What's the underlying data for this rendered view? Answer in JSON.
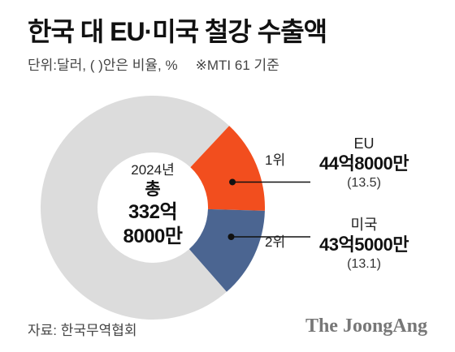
{
  "title": "한국 대 EU·미국 철강 수출액",
  "subtitle": "단위:달러, ( )안은 비율, %",
  "note": "※MTI 61 기준",
  "center": {
    "year": "2024년",
    "total_label": "총",
    "total_line1": "332억",
    "total_line2": "8000만"
  },
  "colors": {
    "eu": "#F24E1E",
    "us": "#4B6591",
    "rest": "#DCDCDC"
  },
  "chart_data": {
    "type": "pie",
    "title": "한국 대 EU·미국 철강 수출액",
    "unit": "달러",
    "total": 33280000000,
    "slices": [
      {
        "name": "EU",
        "rank": "1위",
        "value_label": "44억8000만",
        "value": 4480000000,
        "share": 13.5,
        "share_label": "(13.5)"
      },
      {
        "name": "미국",
        "rank": "2위",
        "value_label": "43억5000만",
        "value": 4350000000,
        "share": 13.1,
        "share_label": "(13.1)"
      },
      {
        "name": "",
        "value": 24450000000,
        "share": 73.4
      }
    ]
  },
  "source": "자료: 한국무역협회",
  "brand": "The JoongAng"
}
